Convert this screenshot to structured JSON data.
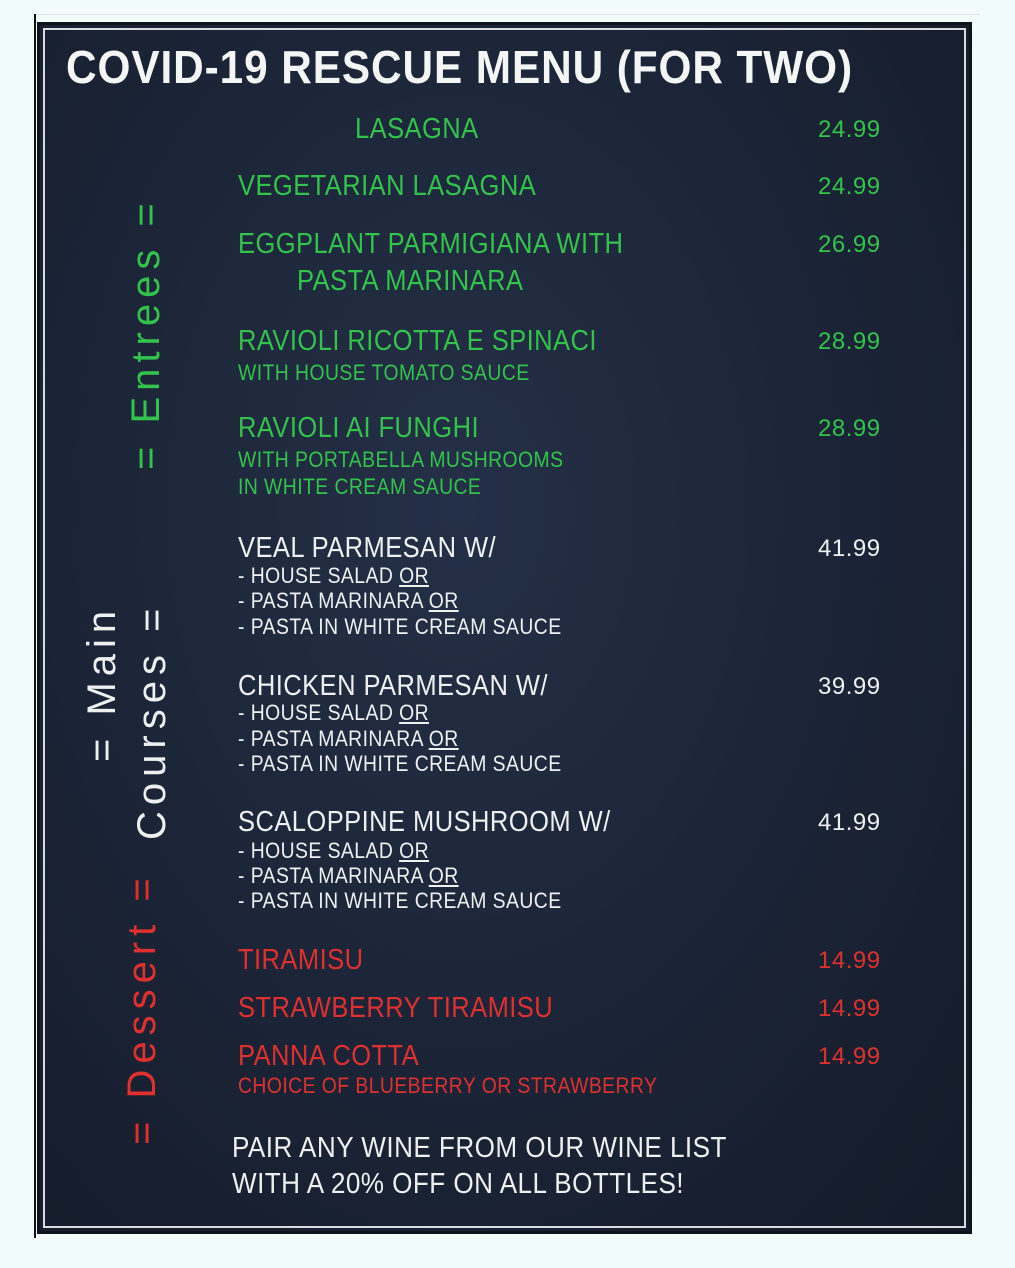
{
  "title": "Covid-19 Rescue Menu (For Two)",
  "sections": {
    "entrees": "= Entrees =",
    "main_line1": "= Main",
    "main_line2": "Courses =",
    "dessert": "= Dessert ="
  },
  "colors": {
    "entrees": "#33c24c",
    "main": "#eef0f0",
    "dessert": "#df3030",
    "board": "#1b2436"
  },
  "entrees": [
    {
      "name": "Lasagna",
      "price": "24.99"
    },
    {
      "name": "Vegetarian Lasagna",
      "price": "24.99"
    },
    {
      "name": "Eggplant Parmigiana with",
      "name2": "Pasta Marinara",
      "price": "26.99"
    },
    {
      "name": "Ravioli Ricotta  E Spinaci",
      "sub": "with house tomato sauce",
      "price": "28.99"
    },
    {
      "name": "Ravioli Ai Funghi",
      "sub": "with portabella mushrooms",
      "sub2": "in white cream sauce",
      "price": "28.99"
    }
  ],
  "mains": [
    {
      "name": "Veal Parmesan  W/",
      "price": "41.99"
    },
    {
      "name": "Chicken Parmesan W/",
      "price": "39.99"
    },
    {
      "name": "Scaloppine Mushroom W/",
      "price": "41.99"
    }
  ],
  "main_options": {
    "opt1": "- House salad ",
    "opt2": "- Pasta marinara ",
    "opt3": "- Pasta in white cream sauce",
    "or": "or"
  },
  "desserts": [
    {
      "name": "Tiramisu",
      "price": "14.99"
    },
    {
      "name": "Strawberry Tiramisu",
      "price": "14.99"
    },
    {
      "name": "Panna Cotta",
      "sub": "Choice of blueberry or strawberry",
      "price": "14.99"
    }
  ],
  "wine": {
    "line1": "Pair any wine from our wine list",
    "line2": "with a 20% off on all bottles!"
  }
}
